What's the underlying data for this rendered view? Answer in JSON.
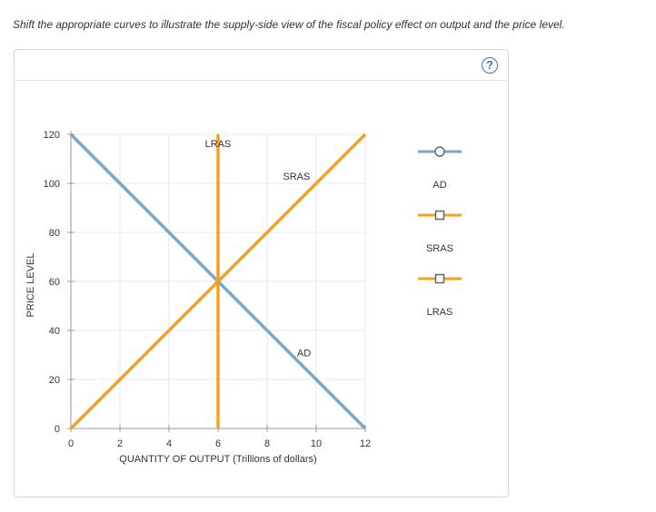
{
  "instruction": "Shift the appropriate curves to illustrate the supply-side view of the fiscal policy effect on output and the price level.",
  "help_label": "?",
  "colors": {
    "ad": "#7aa6cd",
    "sras": "#f5a11b",
    "lras": "#f5a11b",
    "grid": "#e8e8e8",
    "axis": "#999999",
    "help": "#3d74b8"
  },
  "toolbox": [
    {
      "id": "ad",
      "label": "AD",
      "marker": "circle"
    },
    {
      "id": "sras",
      "label": "SRAS",
      "marker": "square"
    },
    {
      "id": "lras",
      "label": "LRAS",
      "marker": "square"
    }
  ],
  "chart_data": {
    "type": "line",
    "title": "",
    "xlabel": "QUANTITY OF OUTPUT (Trillions of dollars)",
    "ylabel": "PRICE LEVEL",
    "xlim": [
      0,
      12
    ],
    "ylim": [
      0,
      120
    ],
    "xticks": [
      0,
      2,
      4,
      6,
      8,
      10,
      12
    ],
    "yticks": [
      0,
      20,
      40,
      60,
      80,
      100,
      120
    ],
    "grid": true,
    "series": [
      {
        "name": "AD",
        "points": [
          [
            0,
            120
          ],
          [
            12,
            0
          ]
        ]
      },
      {
        "name": "SRAS",
        "points": [
          [
            0,
            0
          ],
          [
            12,
            120
          ]
        ]
      },
      {
        "name": "LRAS",
        "points": [
          [
            6,
            0
          ],
          [
            6,
            120
          ]
        ]
      }
    ]
  }
}
